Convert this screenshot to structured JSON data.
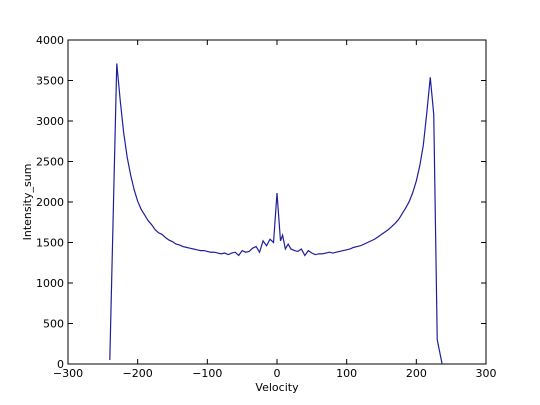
{
  "chart_data": {
    "type": "line",
    "x_label": "Velocity",
    "y_label": "Intensity_sum",
    "x": [
      -240,
      -230,
      -225,
      -220,
      -215,
      -210,
      -205,
      -200,
      -195,
      -190,
      -185,
      -180,
      -175,
      -170,
      -165,
      -160,
      -155,
      -150,
      -145,
      -140,
      -135,
      -130,
      -125,
      -120,
      -115,
      -110,
      -105,
      -100,
      -95,
      -90,
      -85,
      -80,
      -75,
      -70,
      -65,
      -60,
      -55,
      -50,
      -45,
      -40,
      -35,
      -30,
      -25,
      -20,
      -15,
      -10,
      -5,
      0,
      5,
      8,
      12,
      16,
      20,
      25,
      30,
      35,
      40,
      45,
      50,
      55,
      60,
      65,
      70,
      75,
      80,
      85,
      90,
      95,
      100,
      105,
      110,
      115,
      120,
      125,
      130,
      135,
      140,
      145,
      150,
      155,
      160,
      165,
      170,
      175,
      180,
      185,
      190,
      195,
      200,
      205,
      210,
      215,
      220,
      225,
      230,
      237
    ],
    "series": [
      {
        "name": "Intensity_sum",
        "color": "#1f1f9c",
        "values": [
          50,
          3710,
          3250,
          2850,
          2550,
          2330,
          2150,
          2010,
          1910,
          1840,
          1770,
          1720,
          1660,
          1620,
          1600,
          1560,
          1530,
          1510,
          1480,
          1470,
          1450,
          1440,
          1430,
          1420,
          1410,
          1400,
          1400,
          1390,
          1380,
          1380,
          1370,
          1360,
          1370,
          1350,
          1370,
          1380,
          1340,
          1400,
          1380,
          1390,
          1430,
          1450,
          1380,
          1520,
          1460,
          1540,
          1500,
          2110,
          1520,
          1590,
          1420,
          1480,
          1420,
          1400,
          1390,
          1420,
          1340,
          1400,
          1370,
          1350,
          1360,
          1360,
          1370,
          1380,
          1370,
          1380,
          1390,
          1400,
          1410,
          1420,
          1440,
          1450,
          1460,
          1480,
          1500,
          1520,
          1540,
          1570,
          1600,
          1630,
          1660,
          1700,
          1740,
          1790,
          1860,
          1930,
          2010,
          2120,
          2260,
          2450,
          2700,
          3100,
          3540,
          3080,
          300,
          0
        ]
      }
    ],
    "xlim": [
      -300,
      300
    ],
    "xticks": [
      {
        "value": -300,
        "label": "−300"
      },
      {
        "value": -200,
        "label": "−200"
      },
      {
        "value": -100,
        "label": "−100"
      },
      0,
      100,
      200,
      300
    ],
    "ylim": [
      0,
      4000
    ],
    "yticks": [
      0,
      500,
      1000,
      1500,
      2000,
      2500,
      3000,
      3500,
      4000
    ]
  }
}
